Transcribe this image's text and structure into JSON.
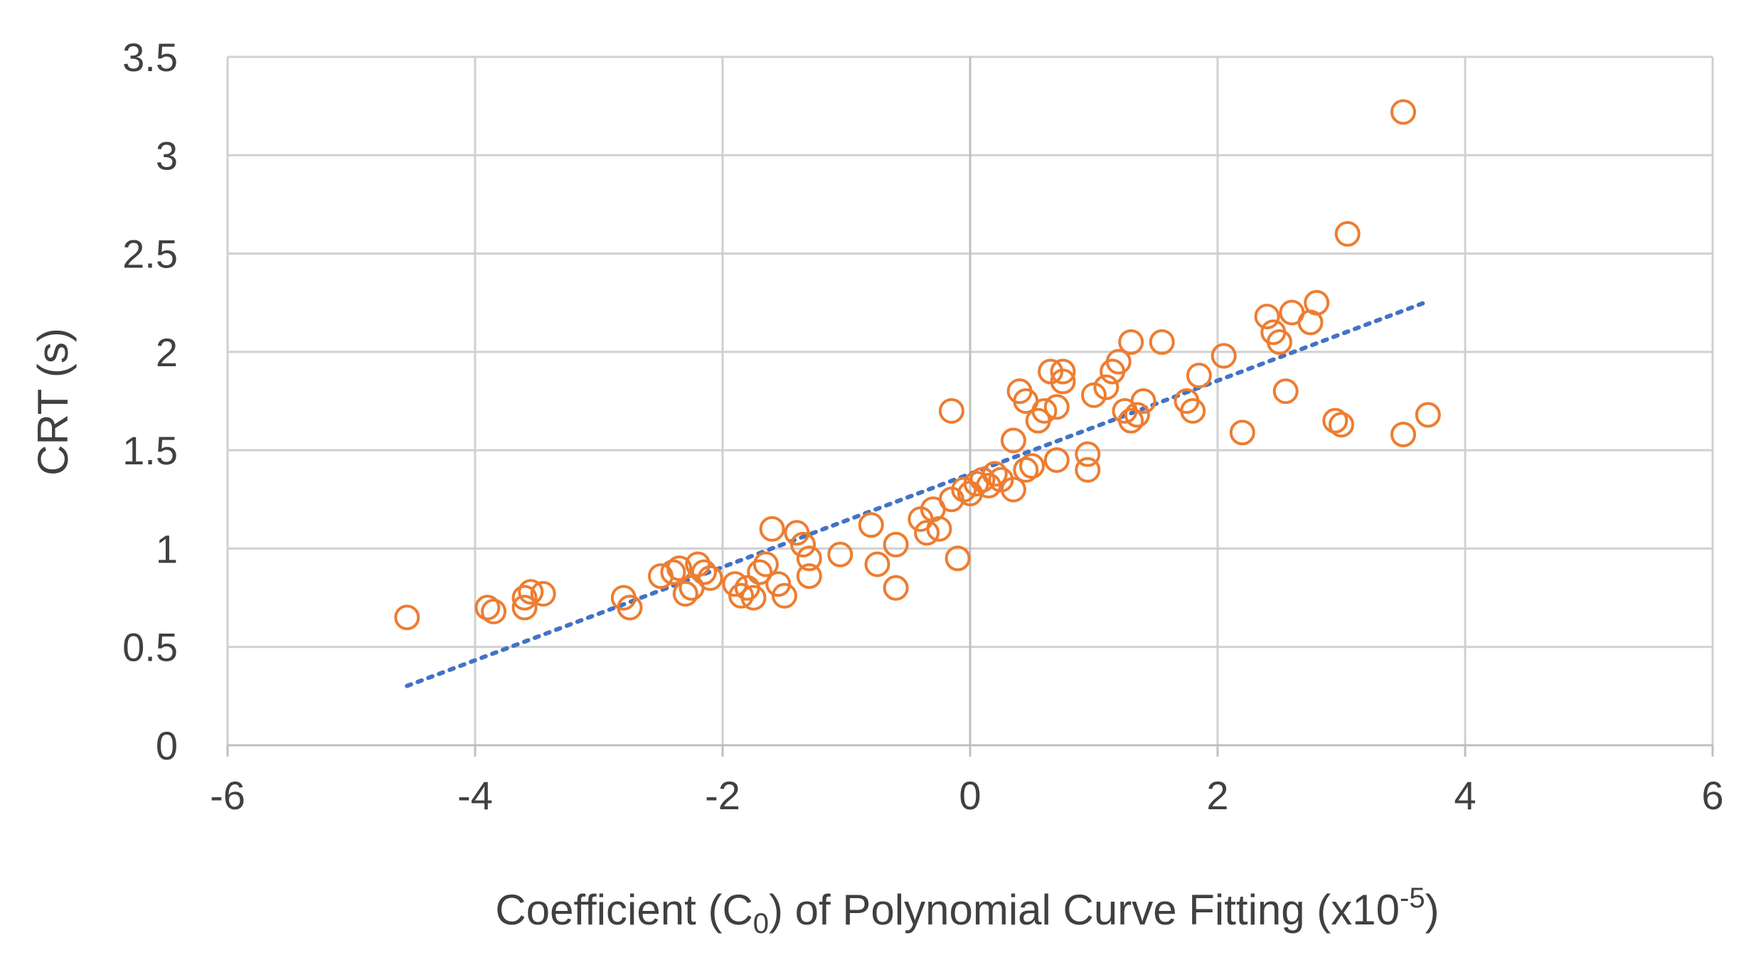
{
  "chart_data": {
    "type": "scatter",
    "title": "",
    "xlabel": {
      "prefix": "Coefficient (C",
      "subscript": "0",
      "middle": ") of Polynomial Curve Fitting (x10",
      "superscript": "-5",
      "suffix": ")"
    },
    "ylabel": "CRT (s)",
    "xlim": [
      -6,
      6
    ],
    "ylim": [
      0,
      3.5
    ],
    "xticks": [
      -6,
      -4,
      -2,
      0,
      2,
      4,
      6
    ],
    "yticks": [
      0,
      0.5,
      1,
      1.5,
      2,
      2.5,
      3,
      3.5
    ],
    "xtick_labels": [
      "-6",
      "-4",
      "-2",
      "0",
      "2",
      "4",
      "6"
    ],
    "ytick_labels": [
      "0",
      "0.5",
      "1",
      "1.5",
      "2",
      "2.5",
      "3",
      "3.5"
    ],
    "grid": true,
    "marker_color": "#ed7d31",
    "trend_color": "#4472c4",
    "series": [
      {
        "name": "CRT",
        "marker": "open-circle",
        "points": [
          [
            -4.55,
            0.65
          ],
          [
            -3.9,
            0.7
          ],
          [
            -3.85,
            0.68
          ],
          [
            -3.6,
            0.75
          ],
          [
            -3.55,
            0.78
          ],
          [
            -3.6,
            0.7
          ],
          [
            -3.45,
            0.77
          ],
          [
            -2.8,
            0.75
          ],
          [
            -2.75,
            0.7
          ],
          [
            -2.5,
            0.86
          ],
          [
            -2.4,
            0.88
          ],
          [
            -2.35,
            0.9
          ],
          [
            -2.3,
            0.77
          ],
          [
            -2.25,
            0.8
          ],
          [
            -2.2,
            0.92
          ],
          [
            -2.15,
            0.88
          ],
          [
            -2.1,
            0.85
          ],
          [
            -1.9,
            0.82
          ],
          [
            -1.85,
            0.76
          ],
          [
            -1.8,
            0.8
          ],
          [
            -1.75,
            0.75
          ],
          [
            -1.7,
            0.88
          ],
          [
            -1.65,
            0.92
          ],
          [
            -1.6,
            1.1
          ],
          [
            -1.55,
            0.82
          ],
          [
            -1.5,
            0.76
          ],
          [
            -1.4,
            1.08
          ],
          [
            -1.35,
            1.02
          ],
          [
            -1.3,
            0.95
          ],
          [
            -1.3,
            0.86
          ],
          [
            -1.05,
            0.97
          ],
          [
            -0.8,
            1.12
          ],
          [
            -0.75,
            0.92
          ],
          [
            -0.6,
            1.02
          ],
          [
            -0.6,
            0.8
          ],
          [
            -0.4,
            1.15
          ],
          [
            -0.35,
            1.08
          ],
          [
            -0.3,
            1.2
          ],
          [
            -0.25,
            1.1
          ],
          [
            -0.15,
            1.7
          ],
          [
            -0.15,
            1.25
          ],
          [
            -0.1,
            0.95
          ],
          [
            -0.05,
            1.3
          ],
          [
            0.0,
            1.28
          ],
          [
            0.05,
            1.33
          ],
          [
            0.1,
            1.35
          ],
          [
            0.15,
            1.32
          ],
          [
            0.2,
            1.38
          ],
          [
            0.25,
            1.35
          ],
          [
            0.35,
            1.3
          ],
          [
            0.35,
            1.55
          ],
          [
            0.4,
            1.8
          ],
          [
            0.45,
            1.75
          ],
          [
            0.45,
            1.4
          ],
          [
            0.5,
            1.42
          ],
          [
            0.55,
            1.65
          ],
          [
            0.6,
            1.7
          ],
          [
            0.65,
            1.9
          ],
          [
            0.7,
            1.72
          ],
          [
            0.7,
            1.45
          ],
          [
            0.75,
            1.85
          ],
          [
            0.75,
            1.9
          ],
          [
            0.95,
            1.48
          ],
          [
            0.95,
            1.4
          ],
          [
            1.0,
            1.78
          ],
          [
            1.1,
            1.82
          ],
          [
            1.15,
            1.9
          ],
          [
            1.2,
            1.95
          ],
          [
            1.25,
            1.7
          ],
          [
            1.3,
            1.65
          ],
          [
            1.3,
            2.05
          ],
          [
            1.35,
            1.68
          ],
          [
            1.4,
            1.75
          ],
          [
            1.55,
            2.05
          ],
          [
            1.75,
            1.75
          ],
          [
            1.8,
            1.7
          ],
          [
            1.85,
            1.88
          ],
          [
            2.05,
            1.98
          ],
          [
            2.2,
            1.59
          ],
          [
            2.4,
            2.18
          ],
          [
            2.45,
            2.1
          ],
          [
            2.5,
            2.05
          ],
          [
            2.55,
            1.8
          ],
          [
            2.6,
            2.2
          ],
          [
            2.75,
            2.15
          ],
          [
            2.8,
            2.25
          ],
          [
            2.95,
            1.65
          ],
          [
            3.0,
            1.63
          ],
          [
            3.05,
            2.6
          ],
          [
            3.5,
            3.22
          ],
          [
            3.5,
            1.58
          ],
          [
            3.7,
            1.68
          ]
        ]
      }
    ],
    "trendline": {
      "type": "linear",
      "x_range": [
        -4.55,
        3.7
      ],
      "slope": 0.237,
      "intercept": 1.38
    }
  }
}
